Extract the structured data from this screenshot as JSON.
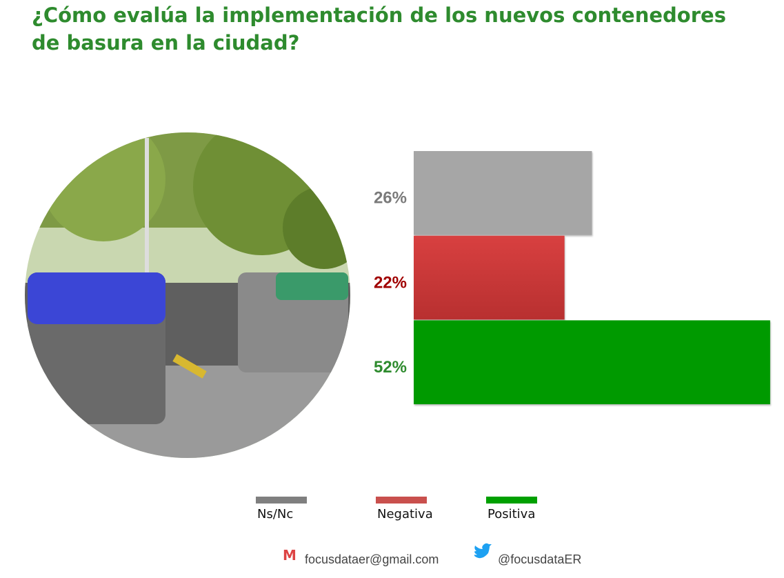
{
  "chart_data": {
    "type": "hbar",
    "title": "¿Cómo evalúa la implementación de los nuevos contenedores de basura en la ciudad?",
    "categories": [
      "Ns/Nc",
      "Negativa",
      "Positiva"
    ],
    "values": [
      26,
      22,
      52
    ],
    "value_labels": [
      "26%",
      "22%",
      "52%"
    ],
    "colors": [
      "#a6a6a6",
      "#cc3b3b",
      "#009a00"
    ],
    "label_colors": [
      "#7a7a7a",
      "#a00000",
      "#2e8b2e"
    ],
    "legend_colors": [
      "#7f7f7f",
      "#c9504d",
      "#00a000"
    ]
  },
  "footer": {
    "email": "focusdataer@gmail.com",
    "twitter": "@focusdataER"
  }
}
